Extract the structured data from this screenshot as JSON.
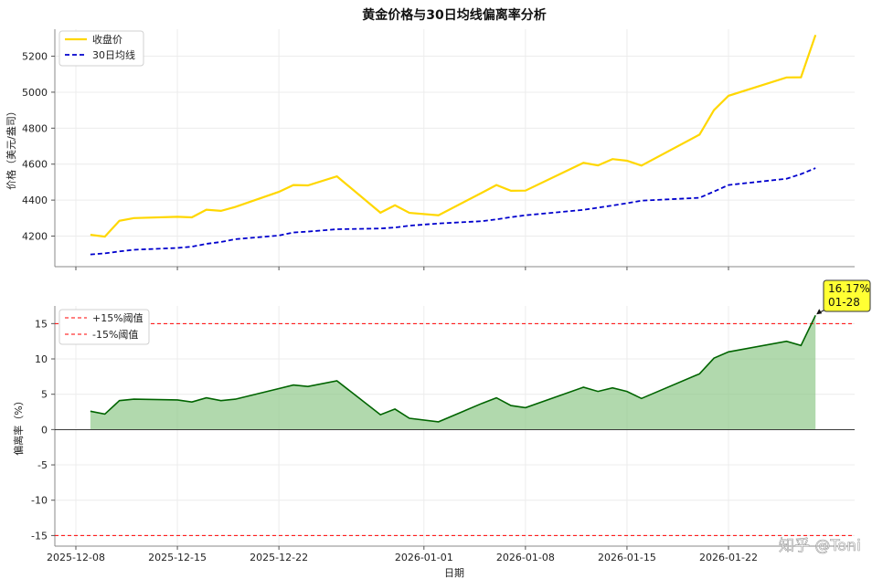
{
  "chart_data": [
    {
      "type": "line",
      "title": "黄金价格与30日均线偏离率分析",
      "ylabel": "价格（美元/盎司）",
      "xlabel": "",
      "ylim": [
        4030,
        5350
      ],
      "yticks": [
        4200,
        4400,
        4600,
        4800,
        5000,
        5200
      ],
      "grid": true,
      "legend_position": "top-left",
      "x": [
        "2025-12-09",
        "2025-12-10",
        "2025-12-11",
        "2025-12-12",
        "2025-12-15",
        "2025-12-16",
        "2025-12-17",
        "2025-12-18",
        "2025-12-19",
        "2025-12-22",
        "2025-12-23",
        "2025-12-24",
        "2025-12-26",
        "2025-12-29",
        "2025-12-30",
        "2025-12-31",
        "2026-01-02",
        "2026-01-05",
        "2026-01-06",
        "2026-01-07",
        "2026-01-08",
        "2026-01-12",
        "2026-01-13",
        "2026-01-14",
        "2026-01-15",
        "2026-01-16",
        "2026-01-20",
        "2026-01-21",
        "2026-01-22",
        "2026-01-26",
        "2026-01-27",
        "2026-01-28"
      ],
      "series": [
        {
          "name": "收盘价",
          "color": "#FFD700",
          "style": "solid",
          "values": [
            4207,
            4197,
            4285,
            4300,
            4307,
            4304,
            4347,
            4340,
            4362,
            4446,
            4484,
            4482,
            4532,
            4330,
            4371,
            4329,
            4316,
            4441,
            4484,
            4452,
            4453,
            4607,
            4593,
            4628,
            4619,
            4592,
            4764,
            4900,
            4980,
            5082,
            5083,
            5318
          ]
        },
        {
          "name": "30日均线",
          "color": "#0000CD",
          "style": "dashed",
          "values": [
            4098,
            4104,
            4115,
            4124,
            4134,
            4141,
            4157,
            4167,
            4183,
            4203,
            4220,
            4225,
            4238,
            4242,
            4248,
            4258,
            4270,
            4283,
            4293,
            4305,
            4316,
            4346,
            4358,
            4370,
            4383,
            4397,
            4413,
            4448,
            4484,
            4519,
            4545,
            4578
          ]
        }
      ]
    },
    {
      "type": "area",
      "title": "",
      "ylabel": "偏离率（%）",
      "xlabel": "日期",
      "ylim": [
        -16.5,
        17.5
      ],
      "yticks": [
        -15,
        -10,
        -5,
        0,
        5,
        10,
        15
      ],
      "grid": true,
      "legend_position": "top-left",
      "xticks": [
        "2025-12-08",
        "2025-12-15",
        "2025-12-22",
        "2026-01-01",
        "2026-01-08",
        "2026-01-15",
        "2026-01-22"
      ],
      "x": [
        "2025-12-09",
        "2025-12-10",
        "2025-12-11",
        "2025-12-12",
        "2025-12-15",
        "2025-12-16",
        "2025-12-17",
        "2025-12-18",
        "2025-12-19",
        "2025-12-22",
        "2025-12-23",
        "2025-12-24",
        "2025-12-26",
        "2025-12-29",
        "2025-12-30",
        "2025-12-31",
        "2026-01-02",
        "2026-01-05",
        "2026-01-06",
        "2026-01-07",
        "2026-01-08",
        "2026-01-12",
        "2026-01-13",
        "2026-01-14",
        "2026-01-15",
        "2026-01-16",
        "2026-01-20",
        "2026-01-21",
        "2026-01-22",
        "2026-01-26",
        "2026-01-27",
        "2026-01-28"
      ],
      "series": [
        {
          "name": "",
          "color": "#006400",
          "fill": "#90C98A",
          "values": [
            2.6,
            2.2,
            4.1,
            4.3,
            4.2,
            3.9,
            4.5,
            4.1,
            4.3,
            5.8,
            6.3,
            6.1,
            6.9,
            2.1,
            2.9,
            1.6,
            1.1,
            3.7,
            4.5,
            3.4,
            3.1,
            6.0,
            5.4,
            5.9,
            5.4,
            4.4,
            7.9,
            10.1,
            11.0,
            12.5,
            11.9,
            16.17
          ]
        }
      ],
      "thresholds": [
        {
          "name": "+15%阈值",
          "value": 15,
          "color": "#FF0000"
        },
        {
          "name": "-15%阈值",
          "value": -15,
          "color": "#FF0000"
        }
      ],
      "annotation": {
        "value_text": "16.17%",
        "date_text": "01-28",
        "color": "#FFFF33"
      }
    }
  ],
  "watermark": "知乎 @Toni"
}
